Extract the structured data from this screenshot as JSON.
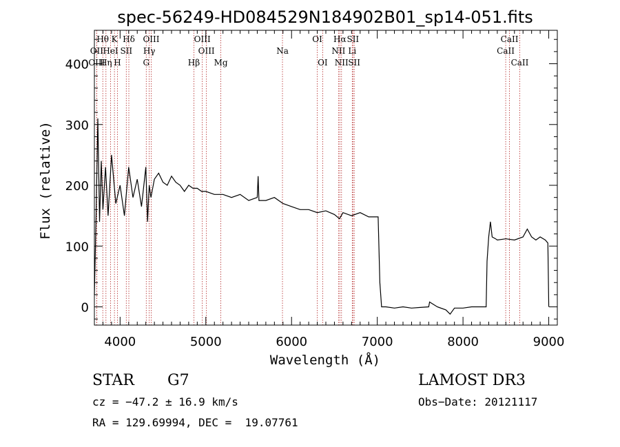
{
  "chart_data": {
    "type": "line",
    "title": "spec-56249-HD084529N184902B01_sp14-051.fits",
    "xlabel": "Wavelength (Å)",
    "ylabel": "Flux (relative)",
    "xlim": [
      3700,
      9100
    ],
    "ylim": [
      -30,
      455
    ],
    "xticks": [
      4000,
      5000,
      6000,
      7000,
      8000,
      9000
    ],
    "yticks": [
      0,
      100,
      200,
      300,
      400
    ],
    "grid": false,
    "line_color": "#000000",
    "marker_color": "#b22222",
    "series": [
      {
        "name": "flux",
        "x": [
          3700,
          3720,
          3740,
          3760,
          3780,
          3800,
          3830,
          3860,
          3900,
          3950,
          4000,
          4050,
          4100,
          4150,
          4200,
          4250,
          4300,
          4320,
          4340,
          4360,
          4400,
          4450,
          4500,
          4550,
          4600,
          4650,
          4700,
          4750,
          4800,
          4850,
          4900,
          4950,
          5000,
          5100,
          5200,
          5300,
          5400,
          5500,
          5600,
          5610,
          5620,
          5700,
          5800,
          5900,
          6000,
          6100,
          6200,
          6300,
          6400,
          6500,
          6560,
          6600,
          6700,
          6800,
          6900,
          6990,
          7000,
          7010,
          7030,
          7050,
          7060,
          7100,
          7200,
          7300,
          7400,
          7500,
          7600,
          7610,
          7700,
          7800,
          7850,
          7900,
          8000,
          8100,
          8200,
          8270,
          8280,
          8300,
          8320,
          8340,
          8380,
          8400,
          8500,
          8600,
          8700,
          8750,
          8800,
          8850,
          8900,
          8960,
          8990,
          9000
        ],
        "y": [
          20,
          150,
          310,
          140,
          240,
          160,
          230,
          150,
          250,
          170,
          200,
          150,
          230,
          180,
          210,
          165,
          230,
          140,
          200,
          180,
          210,
          220,
          205,
          200,
          215,
          205,
          200,
          190,
          200,
          195,
          195,
          190,
          190,
          185,
          185,
          180,
          185,
          175,
          180,
          215,
          175,
          175,
          180,
          170,
          165,
          160,
          160,
          155,
          158,
          152,
          145,
          155,
          150,
          155,
          148,
          148,
          148,
          148,
          40,
          0,
          0,
          0,
          -2,
          0,
          -2,
          -1,
          0,
          8,
          0,
          -5,
          -12,
          -2,
          -2,
          0,
          0,
          0,
          75,
          115,
          140,
          115,
          112,
          110,
          112,
          110,
          115,
          128,
          115,
          110,
          115,
          110,
          105,
          0
        ]
      }
    ],
    "line_markers": [
      {
        "label": "Hθ",
        "x": 3798,
        "row": 0
      },
      {
        "label": "OII",
        "x": 3727,
        "row": 1
      },
      {
        "label": "OIII",
        "x": 3727,
        "row": 2
      },
      {
        "label": "Hη",
        "x": 3835,
        "row": 2
      },
      {
        "label": "HeI",
        "x": 3889,
        "row": 1
      },
      {
        "label": "K",
        "x": 3934,
        "row": 0
      },
      {
        "label": "SII",
        "x": 4072,
        "row": 1
      },
      {
        "label": "H",
        "x": 3969,
        "row": 2
      },
      {
        "label": "Hδ",
        "x": 4102,
        "row": 0
      },
      {
        "label": "OIII",
        "x": 4363,
        "row": 0
      },
      {
        "label": "Hγ",
        "x": 4340,
        "row": 1
      },
      {
        "label": "G",
        "x": 4305,
        "row": 2
      },
      {
        "label": "OIII",
        "x": 4959,
        "row": 0
      },
      {
        "label": "OIII",
        "x": 5007,
        "row": 1
      },
      {
        "label": "Hβ",
        "x": 4861,
        "row": 2
      },
      {
        "label": "Mg",
        "x": 5175,
        "row": 2
      },
      {
        "label": "Na",
        "x": 5894,
        "row": 1
      },
      {
        "label": "OI",
        "x": 6300,
        "row": 0
      },
      {
        "label": "OI",
        "x": 6363,
        "row": 2
      },
      {
        "label": "Hα",
        "x": 6563,
        "row": 0
      },
      {
        "label": "SII",
        "x": 6716,
        "row": 0
      },
      {
        "label": "NII",
        "x": 6548,
        "row": 1
      },
      {
        "label": "Li",
        "x": 6708,
        "row": 1
      },
      {
        "label": "NII",
        "x": 6583,
        "row": 2
      },
      {
        "label": "SII",
        "x": 6731,
        "row": 2
      },
      {
        "label": "CaII",
        "x": 8542,
        "row": 0
      },
      {
        "label": "CaII",
        "x": 8498,
        "row": 1
      },
      {
        "label": "CaII",
        "x": 8662,
        "row": 2
      }
    ]
  },
  "info": {
    "class": "STAR",
    "subclass": "G7",
    "survey": "LAMOST DR3",
    "cz": "cz = −47.2 ± 16.9 km/s",
    "obs_date": "Obs−Date: 20121117",
    "radec": "RA = 129.69994, DEC =  19.07761"
  }
}
